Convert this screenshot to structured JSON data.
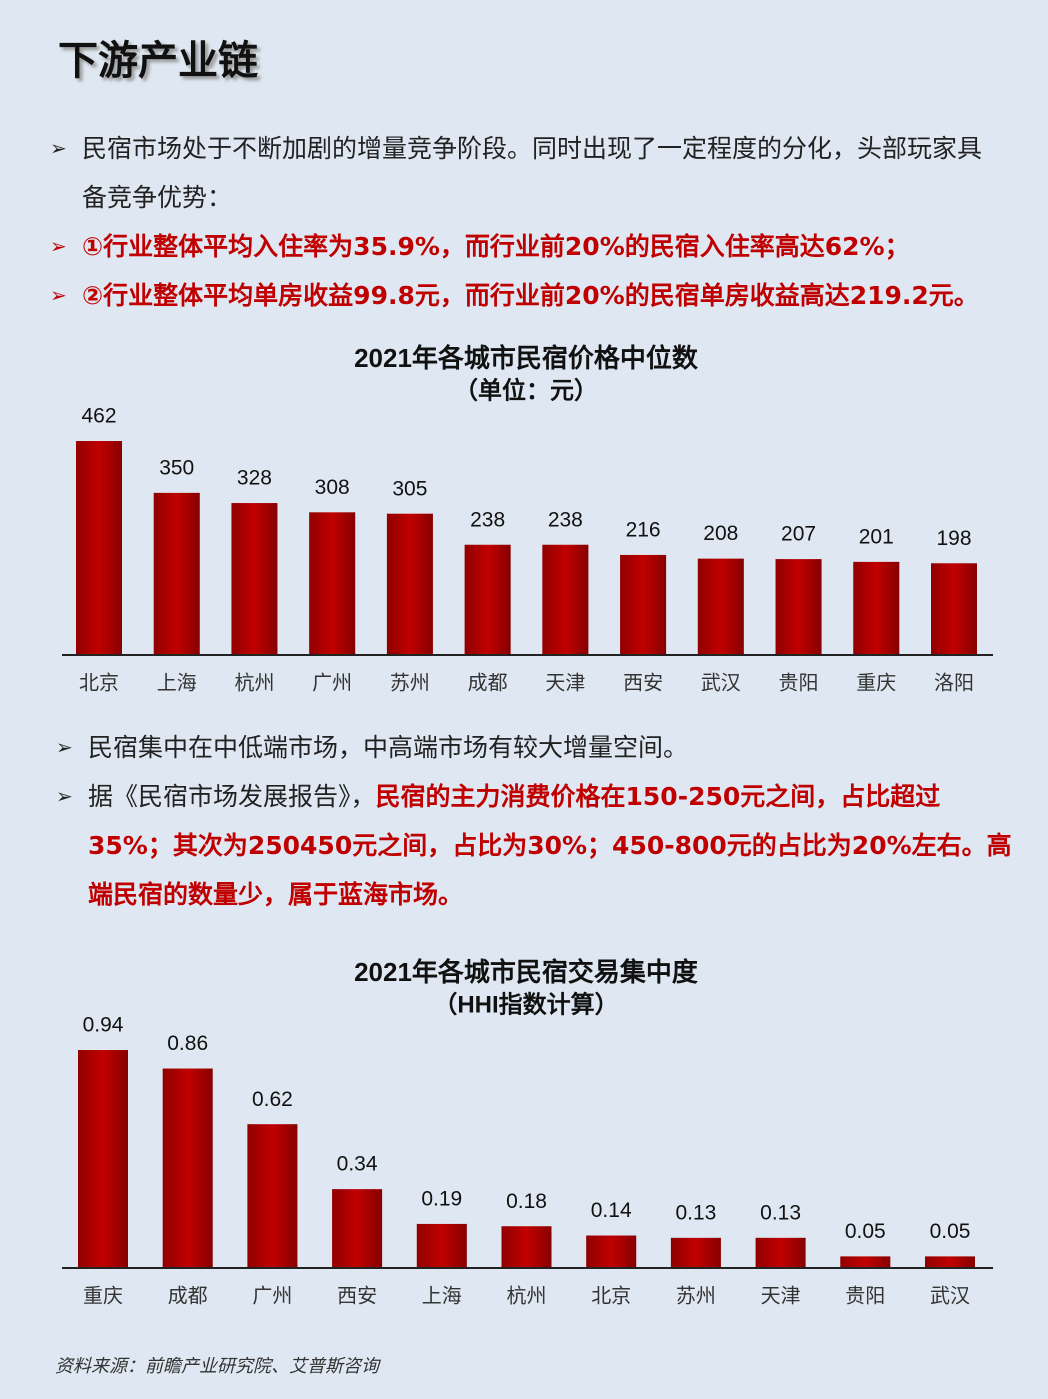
{
  "title": "下游产业链",
  "bullets": [
    {
      "segments": [
        {
          "text": "民宿市场处于不断加剧的增量竞争阶段。同时出现了一定程度的分化，头部玩家具备竞争优势："
        }
      ]
    },
    {
      "segments": [
        {
          "text": "①行业整体平均入住率为35.9%，而行业前20%的民宿入住率高达62%；",
          "color": "#c00000"
        }
      ]
    },
    {
      "segments": [
        {
          "text": "②行业整体平均单房收益99.8元，而行业前20%的民宿单房收益高达219.2元。",
          "color": "#c00000"
        }
      ]
    },
    {
      "segments": [
        {
          "text": "民宿集中在中低端市场，中高端市场有较大增量空间。"
        }
      ]
    },
    {
      "segments": [
        {
          "text": "据《民宿市场发展报告》，"
        },
        {
          "text": "民宿的主力消费价格在150-250元之间，占比超过35%；其次为250450元之间，占比为30%；450-800元的占比为20%左右。高端民宿的数量少，属于蓝海市场。",
          "color": "#c00000"
        }
      ]
    }
  ],
  "chart_data": [
    {
      "type": "bar",
      "title": "2021年各城市民宿价格中位数",
      "subtitle": "（单位：元）",
      "categories": [
        "北京",
        "上海",
        "杭州",
        "广州",
        "苏州",
        "成都",
        "天津",
        "西安",
        "武汉",
        "贵阳",
        "重庆",
        "洛阳"
      ],
      "values": [
        462,
        350,
        328,
        308,
        305,
        238,
        238,
        216,
        208,
        207,
        201,
        198
      ],
      "color": "#c00000"
    },
    {
      "type": "bar",
      "title": "2021年各城市民宿交易集中度",
      "subtitle": "（HHI指数计算）",
      "categories": [
        "重庆",
        "成都",
        "广州",
        "西安",
        "上海",
        "杭州",
        "北京",
        "苏州",
        "天津",
        "贵阳",
        "武汉"
      ],
      "values": [
        0.94,
        0.86,
        0.62,
        0.34,
        0.19,
        0.18,
        0.14,
        0.13,
        0.13,
        0.05,
        0.05
      ],
      "color": "#c00000"
    }
  ],
  "source": "资料来源：前瞻产业研究院、艾普斯咨询"
}
